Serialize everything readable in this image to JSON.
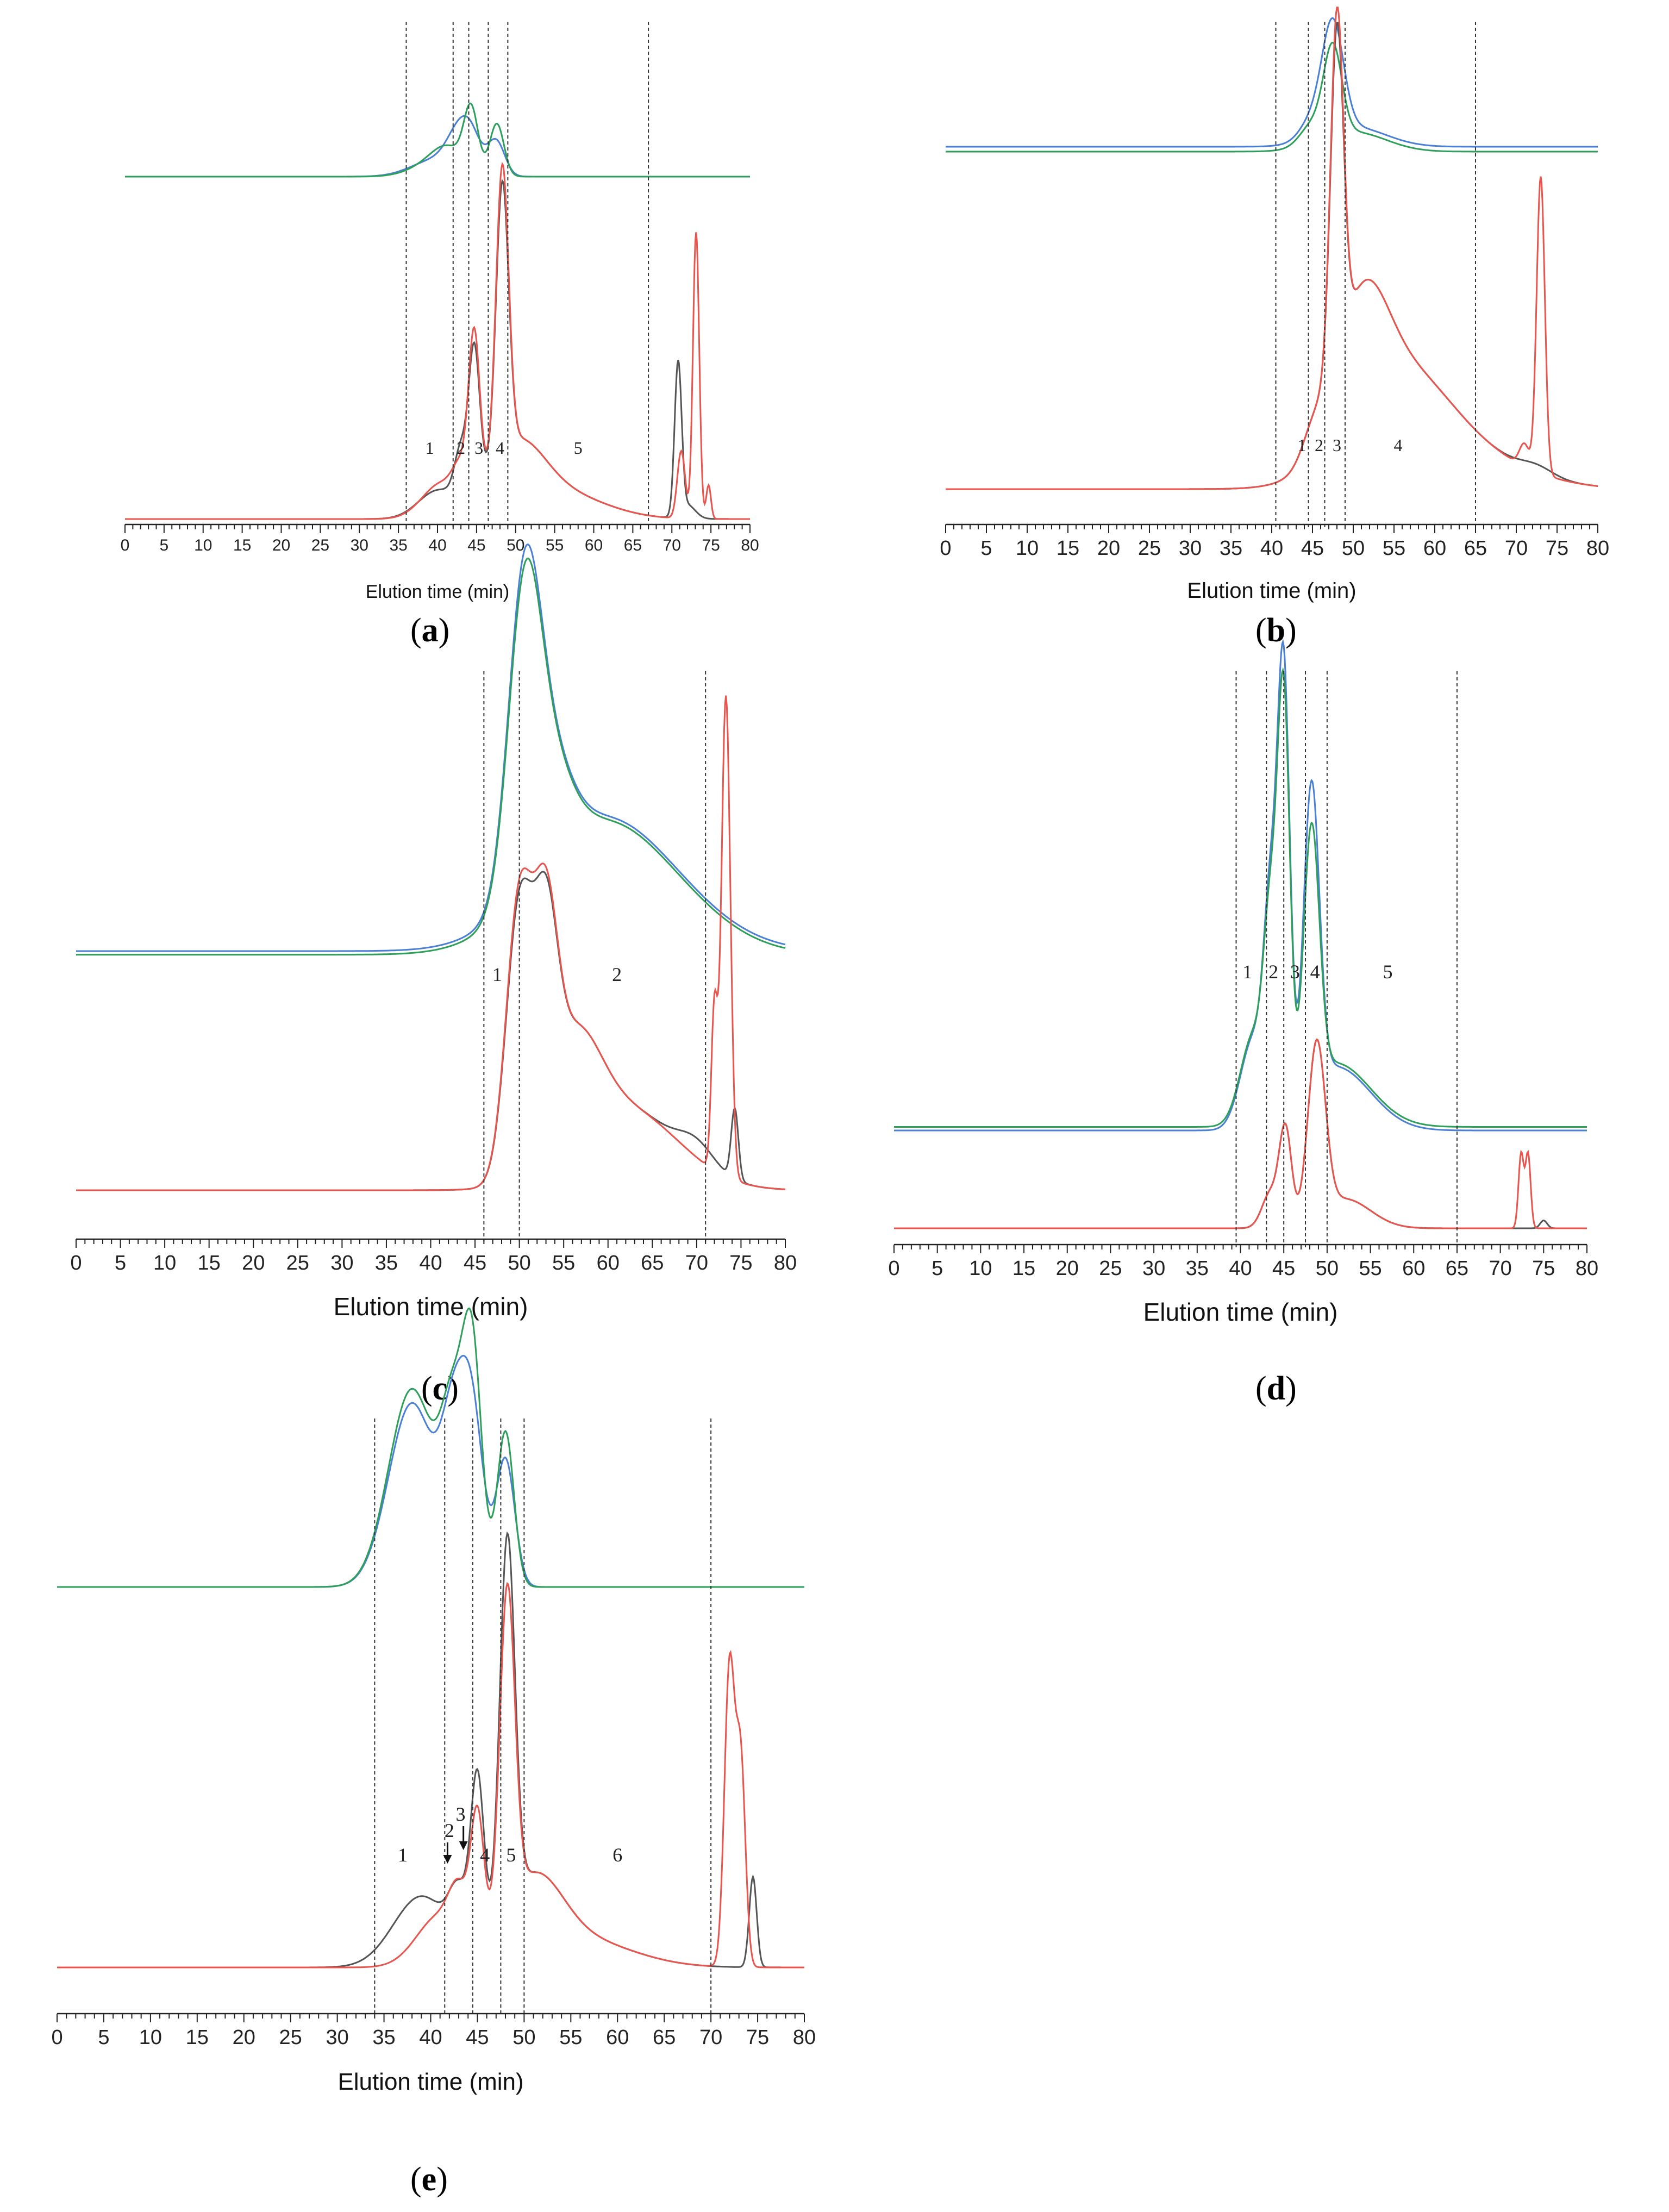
{
  "figure": {
    "colors": {
      "blue": "#4a7fd6",
      "green": "#2e9e5b",
      "red": "#e8554e",
      "gray": "#555555",
      "divider": "#333333"
    }
  },
  "chart_data": [
    {
      "panel": "a",
      "caption_open": "(",
      "caption_letter": "a",
      "caption_close": ")",
      "type": "line",
      "xlabel": "Elution time (min)",
      "xlim": [
        0,
        80
      ],
      "xticks": [
        "0",
        "5",
        "10",
        "15",
        "20",
        "25",
        "30",
        "35",
        "40",
        "45",
        "50",
        "55",
        "60",
        "65",
        "70",
        "75",
        "80"
      ],
      "dividers_min": [
        36,
        42,
        44,
        46.5,
        49,
        67
      ],
      "fraction_labels": [
        {
          "text": "1",
          "x": 39
        },
        {
          "text": "2",
          "x": 43
        },
        {
          "text": "3",
          "x": 45.3
        },
        {
          "text": "4",
          "x": 48
        },
        {
          "text": "5",
          "x": 58
        }
      ],
      "series": [
        {
          "name": "upper-blue",
          "color": "blue",
          "trace": "upper",
          "baseline": 0,
          "peaks": [
            [
              40,
              8,
              3.2
            ],
            [
              43,
              18,
              1.6
            ],
            [
              44.5,
              9,
              1.2
            ],
            [
              47.5,
              16,
              1.1
            ]
          ]
        },
        {
          "name": "upper-green",
          "color": "green",
          "trace": "upper",
          "baseline": 0,
          "peaks": [
            [
              40,
              7,
              3
            ],
            [
              44.3,
              28,
              0.9
            ],
            [
              47.6,
              24,
              0.9
            ],
            [
              41.5,
              8,
              2
            ]
          ]
        },
        {
          "name": "lower-gray",
          "color": "gray",
          "trace": "lower",
          "baseline": 0,
          "peaks": [
            [
              40,
              8,
              2.5
            ],
            [
              43,
              14,
              0.8
            ],
            [
              44.7,
              42,
              0.7
            ],
            [
              48.3,
              80,
              0.8
            ],
            [
              50,
              18,
              3.5
            ],
            [
              55,
              8,
              6
            ],
            [
              70.8,
              45,
              0.45
            ],
            [
              72,
              4,
              1
            ]
          ]
        },
        {
          "name": "lower-red",
          "color": "red",
          "trace": "lower",
          "baseline": 0,
          "peaks": [
            [
              40.5,
              10,
              2.5
            ],
            [
              43,
              8,
              1
            ],
            [
              44.7,
              45,
              0.7
            ],
            [
              48.3,
              85,
              0.8
            ],
            [
              50,
              18,
              3.5
            ],
            [
              55,
              8,
              6
            ],
            [
              71.2,
              20,
              0.5
            ],
            [
              73.1,
              85,
              0.4
            ],
            [
              74.7,
              10,
              0.3
            ]
          ]
        }
      ]
    },
    {
      "panel": "b",
      "caption_open": "(",
      "caption_letter": "b",
      "caption_close": ")",
      "type": "line",
      "xlabel": "Elution time (min)",
      "xlim": [
        0,
        80
      ],
      "xticks": [
        "0",
        "5",
        "10",
        "15",
        "20",
        "25",
        "30",
        "35",
        "40",
        "45",
        "50",
        "55",
        "60",
        "65",
        "70",
        "75",
        "80"
      ],
      "dividers_min": [
        40.5,
        44.5,
        46.5,
        49,
        65
      ],
      "fraction_labels": [
        {
          "text": "1",
          "x": 43.7
        },
        {
          "text": "2",
          "x": 45.8
        },
        {
          "text": "3",
          "x": 48
        },
        {
          "text": "4",
          "x": 55.5
        }
      ],
      "series": [
        {
          "name": "upper-blue",
          "color": "blue",
          "trace": "upper",
          "baseline": 0,
          "peaks": [
            [
              45,
              4,
              1.5
            ],
            [
              47.5,
              22,
              1.3
            ],
            [
              50,
              4,
              4
            ]
          ]
        },
        {
          "name": "upper-green",
          "color": "green",
          "trace": "upper",
          "baseline": -1,
          "peaks": [
            [
              45,
              4,
              1.5
            ],
            [
              47.5,
              18,
              1.1
            ],
            [
              50,
              4,
              4
            ]
          ]
        },
        {
          "name": "lower-gray",
          "color": "gray",
          "trace": "lower",
          "baseline": 0,
          "peaks": [
            [
              45.3,
              8,
              1.5
            ],
            [
              48,
              88,
              0.8
            ],
            [
              51,
              30,
              3
            ],
            [
              55,
              25,
              6
            ],
            [
              62,
              10,
              8
            ],
            [
              72.5,
              2,
              2
            ]
          ]
        },
        {
          "name": "lower-red",
          "color": "red",
          "trace": "lower",
          "baseline": 0,
          "peaks": [
            [
              45.3,
              8,
              1.5
            ],
            [
              48,
              92,
              0.8
            ],
            [
              51,
              30,
              3
            ],
            [
              55,
              25,
              6
            ],
            [
              62,
              10,
              8
            ],
            [
              73,
              78,
              0.5
            ],
            [
              71,
              6,
              0.6
            ]
          ]
        }
      ]
    },
    {
      "panel": "c",
      "caption_open": "(",
      "caption_letter": "c",
      "caption_close": ")",
      "type": "line",
      "xlabel": "Elution time (min)",
      "xlim": [
        0,
        80
      ],
      "xticks": [
        "0",
        "5",
        "10",
        "15",
        "20",
        "25",
        "30",
        "35",
        "40",
        "45",
        "50",
        "55",
        "60",
        "65",
        "70",
        "75",
        "80"
      ],
      "dividers_min": [
        46,
        50,
        71
      ],
      "fraction_labels": [
        {
          "text": "1",
          "x": 47.5
        },
        {
          "text": "2",
          "x": 61
        }
      ],
      "series": [
        {
          "name": "upper-blue",
          "color": "blue",
          "trace": "upper",
          "baseline": 0,
          "peaks": [
            [
              50.5,
              75,
              1.8
            ],
            [
              53,
              30,
              2.5
            ],
            [
              58,
              30,
              7
            ],
            [
              66,
              12,
              7
            ]
          ]
        },
        {
          "name": "upper-green",
          "color": "green",
          "trace": "upper",
          "baseline": -1,
          "peaks": [
            [
              50.5,
              72,
              1.8
            ],
            [
              53,
              30,
              2.5
            ],
            [
              58,
              30,
              7
            ],
            [
              66,
              12,
              7
            ]
          ]
        },
        {
          "name": "lower-gray",
          "color": "gray",
          "trace": "lower",
          "baseline": 0,
          "peaks": [
            [
              50,
              82,
              1.5
            ],
            [
              53,
              58,
              1.3
            ],
            [
              56,
              35,
              3
            ],
            [
              62,
              25,
              6
            ],
            [
              70,
              6,
              2
            ],
            [
              74.3,
              22,
              0.4
            ]
          ]
        },
        {
          "name": "lower-red",
          "color": "red",
          "trace": "lower",
          "baseline": 0,
          "peaks": [
            [
              50,
              85,
              1.5
            ],
            [
              53,
              60,
              1.3
            ],
            [
              56,
              35,
              3
            ],
            [
              62,
              25,
              6
            ],
            [
              72,
              50,
              0.35
            ],
            [
              73.3,
              150,
              0.5
            ]
          ]
        }
      ]
    },
    {
      "panel": "d",
      "caption_open": "(",
      "caption_letter": "d",
      "caption_close": ")",
      "type": "line",
      "xlabel": "Elution time (min)",
      "xlim": [
        0,
        80
      ],
      "xticks": [
        "0",
        "5",
        "10",
        "15",
        "20",
        "25",
        "30",
        "35",
        "40",
        "45",
        "50",
        "55",
        "60",
        "65",
        "70",
        "75",
        "80"
      ],
      "dividers_min": [
        39.5,
        43,
        45,
        47.5,
        50,
        65
      ],
      "fraction_labels": [
        {
          "text": "1",
          "x": 40.8
        },
        {
          "text": "2",
          "x": 43.8
        },
        {
          "text": "3",
          "x": 46.3
        },
        {
          "text": "4",
          "x": 48.6
        },
        {
          "text": "5",
          "x": 57
        }
      ],
      "series": [
        {
          "name": "upper-blue",
          "color": "blue",
          "trace": "upper",
          "baseline": 0,
          "peaks": [
            [
              41.5,
              25,
              1.5
            ],
            [
              43.5,
              55,
              0.8
            ],
            [
              45,
              120,
              0.7
            ],
            [
              48.2,
              85,
              0.9
            ],
            [
              51,
              18,
              4
            ]
          ]
        },
        {
          "name": "upper-green",
          "color": "green",
          "trace": "upper",
          "baseline": 1,
          "peaks": [
            [
              41.5,
              25,
              1.5
            ],
            [
              43.5,
              50,
              0.8
            ],
            [
              45,
              112,
              0.7
            ],
            [
              48.2,
              72,
              0.9
            ],
            [
              51,
              18,
              4
            ]
          ]
        },
        {
          "name": "lower-gray",
          "color": "gray",
          "trace": "lower",
          "baseline": 0,
          "peaks": [
            [
              43.5,
              18,
              1
            ],
            [
              45.2,
              48,
              0.7
            ],
            [
              48.8,
              88,
              1
            ],
            [
              52,
              15,
              3
            ],
            [
              75,
              4,
              0.4
            ]
          ]
        },
        {
          "name": "lower-red",
          "color": "red",
          "trace": "lower",
          "baseline": 0,
          "peaks": [
            [
              43.5,
              18,
              1
            ],
            [
              45.2,
              48,
              0.7
            ],
            [
              48.8,
              88,
              1
            ],
            [
              52,
              15,
              3
            ],
            [
              72.4,
              38,
              0.3
            ],
            [
              73.2,
              38,
              0.3
            ]
          ]
        }
      ]
    },
    {
      "panel": "e",
      "caption_open": "(",
      "caption_letter": "e",
      "caption_close": ")",
      "type": "line",
      "xlabel": "Elution time (min)",
      "xlim": [
        0,
        80
      ],
      "xticks": [
        "0",
        "5",
        "10",
        "15",
        "20",
        "25",
        "30",
        "35",
        "40",
        "45",
        "50",
        "55",
        "60",
        "65",
        "70",
        "75",
        "80"
      ],
      "dividers_min": [
        34,
        41.5,
        44.5,
        47.5,
        50,
        70
      ],
      "fraction_labels": [
        {
          "text": "1",
          "x": 37
        },
        {
          "text": "2",
          "x": 42
        },
        {
          "text": "3",
          "x": 43.2
        },
        {
          "text": "4",
          "x": 45.8
        },
        {
          "text": "5",
          "x": 48.6
        },
        {
          "text": "6",
          "x": 60
        }
      ],
      "series": [
        {
          "name": "upper-blue",
          "color": "blue",
          "trace": "upper",
          "baseline": 0,
          "peaks": [
            [
              38,
              65,
              2.5
            ],
            [
              42.5,
              50,
              1.3
            ],
            [
              44.5,
              55,
              1.2
            ],
            [
              48,
              45,
              1
            ]
          ]
        },
        {
          "name": "upper-green",
          "color": "green",
          "trace": "upper",
          "baseline": 0,
          "peaks": [
            [
              38,
              70,
              2.5
            ],
            [
              42.5,
              55,
              1.3
            ],
            [
              44.5,
              75,
              1
            ],
            [
              48,
              55,
              0.9
            ]
          ]
        },
        {
          "name": "lower-gray",
          "color": "gray",
          "trace": "lower",
          "baseline": 0,
          "peaks": [
            [
              39,
              35,
              3
            ],
            [
              43,
              25,
              1
            ],
            [
              45,
              82,
              0.7
            ],
            [
              48.2,
              185,
              0.8
            ],
            [
              51,
              35,
              3
            ],
            [
              55,
              15,
              6
            ],
            [
              74.5,
              45,
              0.4
            ]
          ]
        },
        {
          "name": "lower-red",
          "color": "red",
          "trace": "lower",
          "baseline": 0,
          "peaks": [
            [
              41,
              25,
              2.5
            ],
            [
              43,
              22,
              1
            ],
            [
              45,
              62,
              0.7
            ],
            [
              48.2,
              160,
              0.8
            ],
            [
              51,
              35,
              3
            ],
            [
              55,
              15,
              6
            ],
            [
              72,
              150,
              0.55
            ],
            [
              73.2,
              100,
              0.5
            ]
          ]
        }
      ]
    }
  ]
}
